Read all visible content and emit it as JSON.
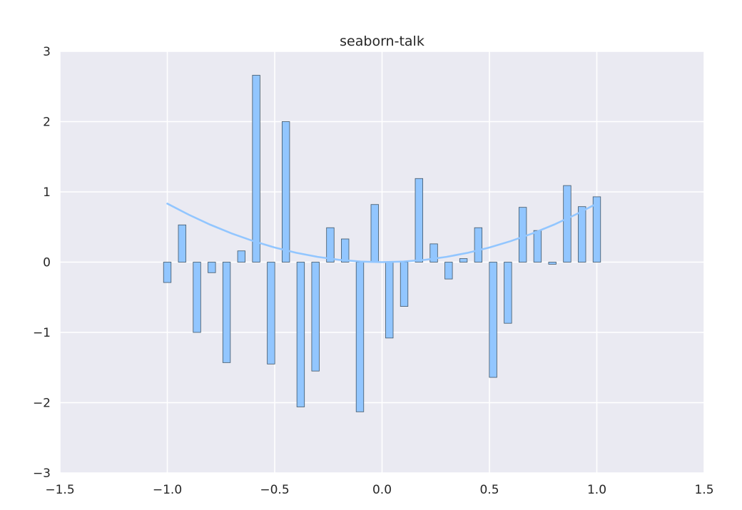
{
  "chart_data": {
    "type": "bar",
    "title": "seaborn-talk",
    "xlabel": "",
    "ylabel": "",
    "xlim": [
      -1.5,
      1.5
    ],
    "ylim": [
      -3,
      3
    ],
    "grid": true,
    "xticks": [
      -1.5,
      -1.0,
      -0.5,
      0.0,
      0.5,
      1.0,
      1.5
    ],
    "xtick_labels": [
      "−1.5",
      "−1.0",
      "−0.5",
      "0.0",
      "0.5",
      "1.0",
      "1.5"
    ],
    "yticks": [
      -3,
      -2,
      -1,
      0,
      1,
      2,
      3
    ],
    "ytick_labels": [
      "−3",
      "−2",
      "−1",
      "0",
      "1",
      "2",
      "3"
    ],
    "bar_width": 0.035,
    "series": [
      {
        "name": "bars",
        "type": "bar",
        "color": "#92c6ff",
        "x": [
          -1.0,
          -0.931,
          -0.862,
          -0.793,
          -0.724,
          -0.655,
          -0.586,
          -0.517,
          -0.448,
          -0.379,
          -0.31,
          -0.241,
          -0.172,
          -0.103,
          -0.034,
          0.034,
          0.103,
          0.172,
          0.241,
          0.31,
          0.379,
          0.448,
          0.517,
          0.586,
          0.655,
          0.724,
          0.793,
          0.862,
          0.931,
          1.0
        ],
        "values": [
          -0.29,
          0.53,
          -1.0,
          -0.15,
          -1.43,
          0.16,
          2.66,
          -1.45,
          2.0,
          -2.06,
          -1.55,
          0.49,
          0.33,
          -2.13,
          0.82,
          -1.08,
          -0.63,
          1.19,
          0.26,
          -0.24,
          0.05,
          0.49,
          -1.64,
          -0.87,
          0.78,
          0.45,
          -0.03,
          1.09,
          0.79,
          0.93
        ]
      },
      {
        "name": "curve",
        "type": "line",
        "color": "#92c6ff",
        "function": "0.833 * x^2",
        "x": [
          -1.0,
          -0.9,
          -0.8,
          -0.7,
          -0.6,
          -0.5,
          -0.4,
          -0.3,
          -0.2,
          -0.1,
          0.0,
          0.1,
          0.2,
          0.3,
          0.4,
          0.5,
          0.6,
          0.7,
          0.8,
          0.9,
          1.0
        ],
        "values": [
          0.833,
          0.675,
          0.533,
          0.408,
          0.3,
          0.208,
          0.133,
          0.075,
          0.033,
          0.008,
          0.0,
          0.008,
          0.033,
          0.075,
          0.133,
          0.208,
          0.3,
          0.408,
          0.533,
          0.675,
          0.833
        ]
      }
    ]
  },
  "colors": {
    "plot_background": "#eaeaf2",
    "grid": "#ffffff",
    "bar_fill": "#92c6ff",
    "bar_edge": "#3f5566",
    "line": "#92c6ff",
    "text": "#262626"
  }
}
